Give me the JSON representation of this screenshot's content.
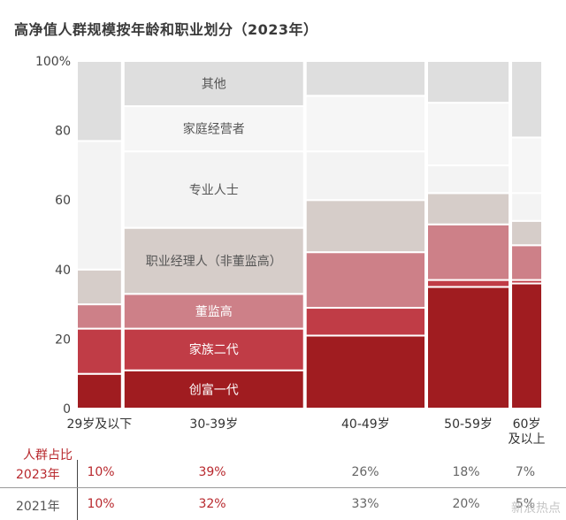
{
  "chart_data": {
    "type": "mekko",
    "title": "高净值人群规模按年龄和职业划分（2023年）",
    "y_ticks": [
      "0",
      "20",
      "40",
      "60",
      "80",
      "100%"
    ],
    "ylim": [
      0,
      100
    ],
    "segment_labels": [
      "创富一代",
      "家族二代",
      "董监高",
      "职业经理人（非董监高）",
      "专业人士",
      "家庭经营者",
      "其他"
    ],
    "segment_colors": [
      "#a01c20",
      "#c03c46",
      "#cd8088",
      "#d6cdc9",
      "#f3f3f3",
      "#f6f6f6",
      "#dedede"
    ],
    "columns": [
      {
        "label": "29岁及以下",
        "width_pct": 10,
        "segments": [
          10,
          13,
          7,
          10,
          37,
          0,
          23
        ]
      },
      {
        "label": "30-39岁",
        "width_pct": 39,
        "segments": [
          11,
          12,
          10,
          19,
          22,
          13,
          13
        ]
      },
      {
        "label": "40-49岁",
        "width_pct": 26,
        "segments": [
          21,
          8,
          16,
          15,
          14,
          16,
          10
        ]
      },
      {
        "label": "50-59岁",
        "width_pct": 18,
        "segments": [
          35,
          2,
          16,
          9,
          8,
          18,
          12
        ]
      },
      {
        "label": "60岁\n及以上",
        "width_pct": 7,
        "segments": [
          36,
          1,
          10,
          7,
          8,
          16,
          22
        ]
      }
    ]
  },
  "share_table": {
    "title": "人群占比",
    "rows": [
      {
        "year": "2023年",
        "values": [
          "10%",
          "39%",
          "26%",
          "18%",
          "7%"
        ]
      },
      {
        "year": "2021年",
        "values": [
          "10%",
          "32%",
          "33%",
          "20%",
          "5%"
        ]
      }
    ]
  },
  "watermark": "新浪热点"
}
